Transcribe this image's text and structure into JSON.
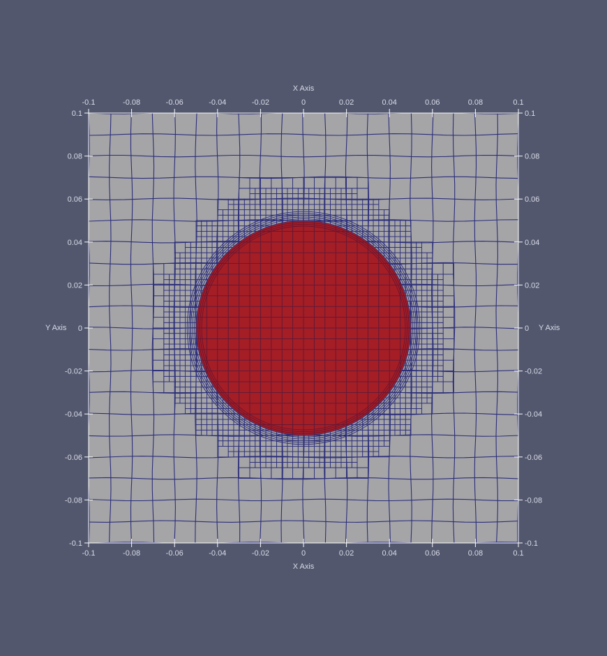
{
  "view": {
    "background_color": "#52576e",
    "domain_fill_color": "#a5a5a7",
    "mesh_line_color": "#2b2d7a",
    "region_fill_color": "#a51d25",
    "axis_color": "#ffffff",
    "label_color": "#d9dce6"
  },
  "axes": {
    "x_title_top": "X Axis",
    "x_title_bottom": "X Axis",
    "y_title_left": "Y Axis",
    "y_title_right": "Y Axis",
    "x_range": [
      -0.1,
      0.1
    ],
    "y_range": [
      -0.1,
      0.1
    ],
    "x_ticks": [
      -0.1,
      -0.08,
      -0.06,
      -0.04,
      -0.02,
      0,
      0.02,
      0.04,
      0.06,
      0.08,
      0.1
    ],
    "y_ticks": [
      -0.1,
      -0.08,
      -0.06,
      -0.04,
      -0.02,
      0,
      0.02,
      0.04,
      0.06,
      0.08,
      0.1
    ],
    "x_tick_labels": [
      "-0.1",
      "-0.08",
      "-0.06",
      "-0.04",
      "-0.02",
      "0",
      "0.02",
      "0.04",
      "0.06",
      "0.08",
      "0.1"
    ],
    "y_tick_labels": [
      "-0.1",
      "-0.08",
      "-0.06",
      "-0.04",
      "-0.02",
      "0",
      "0.02",
      "0.04",
      "0.06",
      "0.08",
      "0.1"
    ]
  },
  "mesh": {
    "coarse_cell_size": 0.01,
    "circle_center": [
      0,
      0
    ],
    "circle_radius": 0.05,
    "refinement_outer_radius": 0.065
  }
}
